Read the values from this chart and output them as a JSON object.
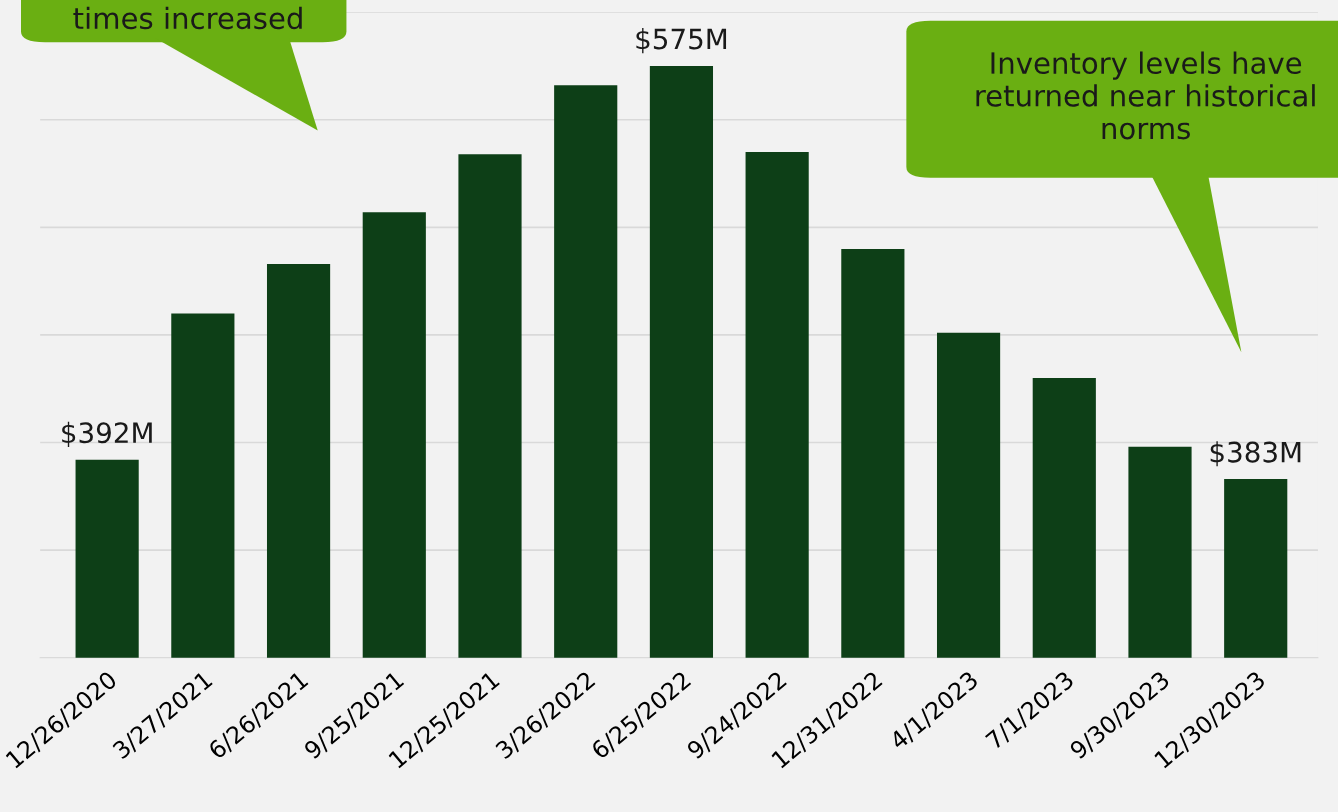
{
  "chart_data": {
    "type": "bar",
    "categories": [
      "12/26/2020",
      "3/27/2021",
      "6/26/2021",
      "9/25/2021",
      "12/25/2021",
      "3/26/2022",
      "6/25/2022",
      "9/24/2022",
      "12/31/2022",
      "4/1/2023",
      "7/1/2023",
      "9/30/2023",
      "12/30/2023"
    ],
    "values": [
      392,
      460,
      483,
      507,
      534,
      566,
      575,
      535,
      490,
      451,
      430,
      398,
      383
    ],
    "value_labels": [
      "$392M",
      null,
      null,
      null,
      null,
      null,
      "$575M",
      null,
      null,
      null,
      null,
      null,
      "$383M"
    ],
    "color": "#0d3f17",
    "ylim": [
      300,
      600
    ],
    "yticks": [
      {
        "value": 300,
        "label": null
      },
      {
        "value": 350,
        "label": null
      },
      {
        "value": 400,
        "label": null
      },
      {
        "value": 450,
        "label": null
      },
      {
        "value": 500,
        "label": null
      },
      {
        "value": 550,
        "label": null
      },
      {
        "value": 600,
        "label": null
      }
    ],
    "tick_labels": "x",
    "grid": "y",
    "annotations": [
      "times increased",
      "Inventory levels have returned near historical norms"
    ]
  }
}
